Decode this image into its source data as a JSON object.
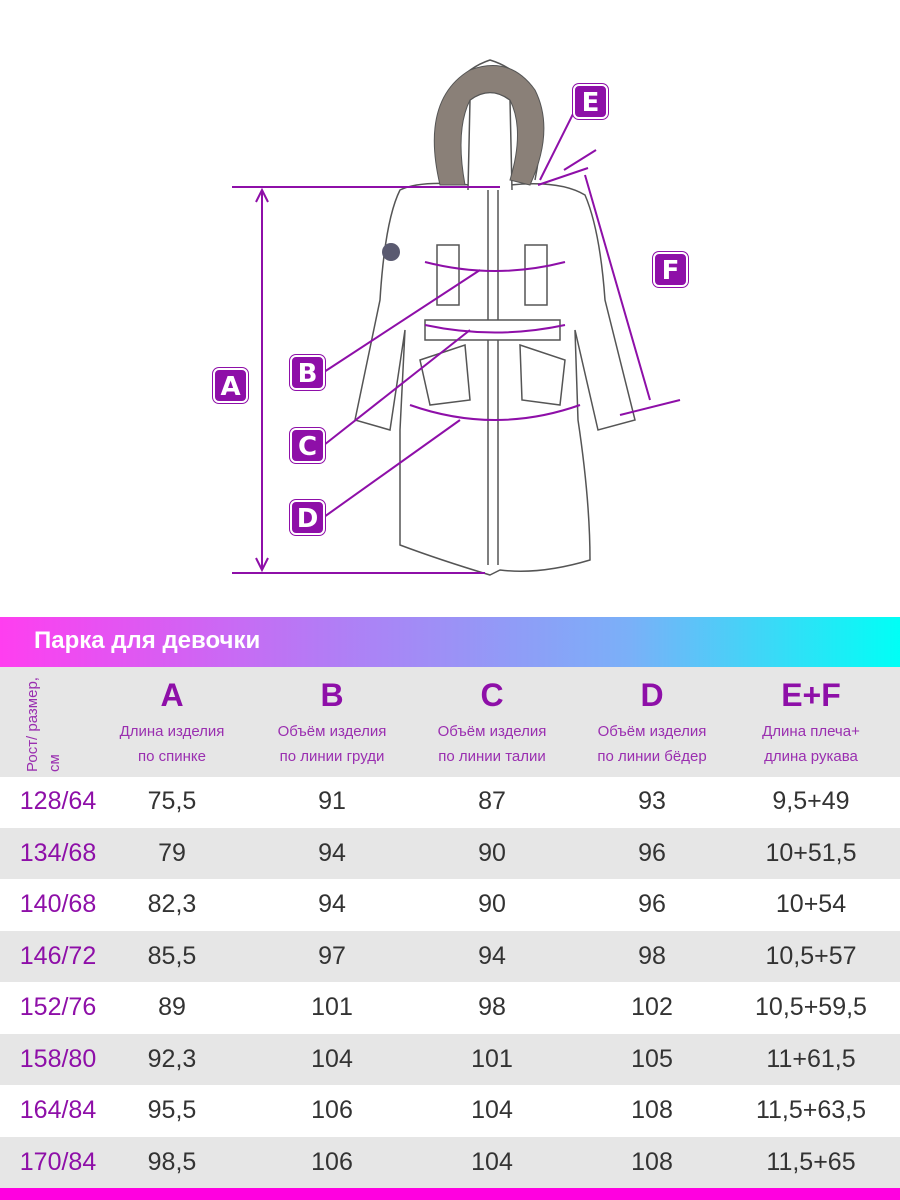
{
  "diagram": {
    "labels": [
      "A",
      "B",
      "C",
      "D",
      "E",
      "F"
    ],
    "accent": "#8e0fa8"
  },
  "title": "Парка для девочки",
  "table": {
    "size_header": "Рост/ размер, см",
    "columns": [
      {
        "letter": "A",
        "desc1": "Длина изделия",
        "desc2": "по спинке"
      },
      {
        "letter": "B",
        "desc1": "Объём изделия",
        "desc2": "по линии груди"
      },
      {
        "letter": "C",
        "desc1": "Объём изделия",
        "desc2": "по линии талии"
      },
      {
        "letter": "D",
        "desc1": "Объём изделия",
        "desc2": "по линии бёдер"
      },
      {
        "letter": "E+F",
        "desc1": "Длина плеча+",
        "desc2": "длина рукава"
      }
    ],
    "rows": [
      [
        "128/64",
        "75,5",
        "91",
        "87",
        "93",
        "9,5+49"
      ],
      [
        "134/68",
        "79",
        "94",
        "90",
        "96",
        "10+51,5"
      ],
      [
        "140/68",
        "82,3",
        "94",
        "90",
        "96",
        "10+54"
      ],
      [
        "146/72",
        "85,5",
        "97",
        "94",
        "98",
        "10,5+57"
      ],
      [
        "152/76",
        "89",
        "101",
        "98",
        "102",
        "10,5+59,5"
      ],
      [
        "158/80",
        "92,3",
        "104",
        "101",
        "105",
        "11+61,5"
      ],
      [
        "164/84",
        "95,5",
        "106",
        "104",
        "108",
        "11,5+63,5"
      ],
      [
        "170/84",
        "98,5",
        "106",
        "104",
        "108",
        "11,5+65"
      ]
    ]
  }
}
